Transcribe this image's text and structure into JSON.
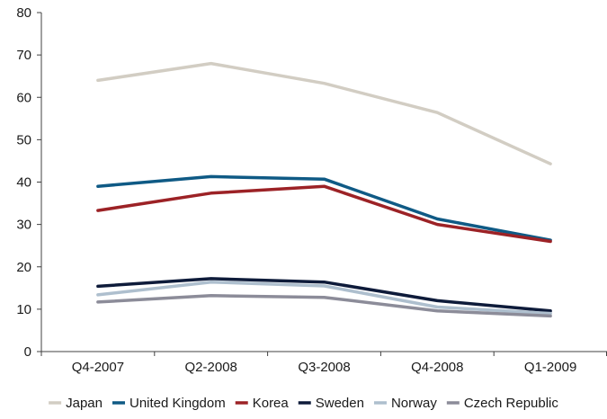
{
  "chart_data": {
    "type": "line",
    "title": "",
    "xlabel": "",
    "ylabel": "",
    "categories": [
      "Q4-2007",
      "Q2-2008",
      "Q3-2008",
      "Q4-2008",
      "Q1-2009"
    ],
    "ylim": [
      0,
      80
    ],
    "yticks": [
      0,
      10,
      20,
      30,
      40,
      50,
      60,
      70,
      80
    ],
    "grid": false,
    "legend_position": "bottom",
    "series": [
      {
        "name": "Japan",
        "color": "#d2cdc3",
        "values": [
          64,
          68,
          63.3,
          56.4,
          44.3
        ]
      },
      {
        "name": "United Kingdom",
        "color": "#0f5a85",
        "values": [
          39,
          41.3,
          40.7,
          31.3,
          26.3
        ]
      },
      {
        "name": "Korea",
        "color": "#9c2226",
        "values": [
          33.3,
          37.4,
          39,
          30,
          26
        ]
      },
      {
        "name": "Sweden",
        "color": "#0e1b3a",
        "values": [
          15.4,
          17.2,
          16.4,
          12,
          9.6
        ]
      },
      {
        "name": "Norway",
        "color": "#aebfce",
        "values": [
          13.4,
          16.4,
          15.5,
          10.5,
          9
        ]
      },
      {
        "name": "Czech Republic",
        "color": "#8c8c99",
        "values": [
          11.7,
          13.2,
          12.8,
          9.6,
          8.4
        ]
      }
    ]
  }
}
